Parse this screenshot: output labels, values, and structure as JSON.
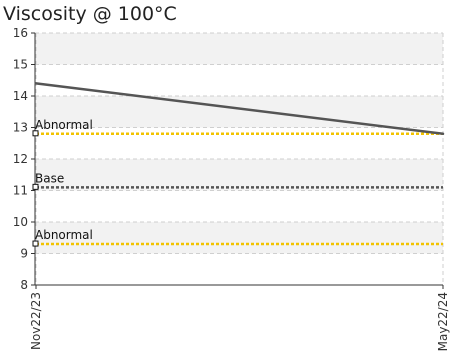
{
  "chart_data": {
    "type": "line",
    "title": "Viscosity @ 100°C",
    "xlabel": "",
    "ylabel": "",
    "categories": [
      "Nov22/23",
      "May22/24"
    ],
    "ylim": [
      8,
      16
    ],
    "yticks": [
      8,
      9,
      10,
      11,
      12,
      13,
      14,
      15,
      16
    ],
    "grid": true,
    "series": [
      {
        "values": [
          14.4,
          12.8
        ],
        "color": "#555555"
      }
    ],
    "reference_lines": [
      {
        "label": "Abnormal",
        "value": 12.8,
        "color": "#f2c300"
      },
      {
        "label": "Base",
        "value": 11.1,
        "color": "#555555"
      },
      {
        "label": "Abnormal",
        "value": 9.3,
        "color": "#f2c300"
      }
    ]
  }
}
